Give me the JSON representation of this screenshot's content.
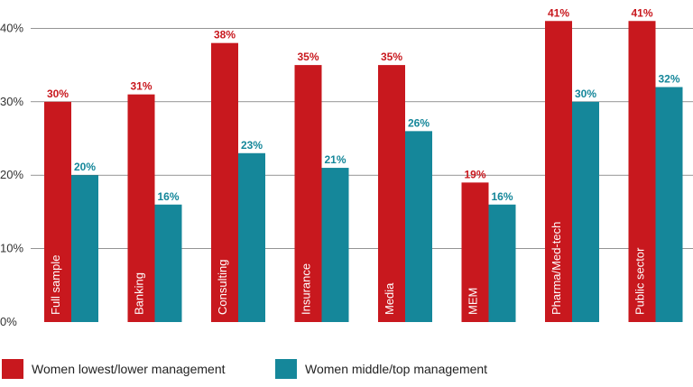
{
  "chart_data": {
    "type": "bar",
    "categories": [
      "Full sample",
      "Banking",
      "Consulting",
      "Insurance",
      "Media",
      "MEM",
      "Pharma/Med-tech",
      "Public sector"
    ],
    "series": [
      {
        "name": "Women lowest/lower management",
        "values": [
          30,
          31,
          38,
          35,
          35,
          19,
          41,
          41
        ],
        "labels": [
          "30%",
          "31%",
          "38%",
          "35%",
          "35%",
          "19%",
          "41%",
          "41%"
        ],
        "color": "#c8181e"
      },
      {
        "name": "Women middle/top management",
        "values": [
          20,
          16,
          23,
          21,
          26,
          16,
          30,
          32
        ],
        "labels": [
          "20%",
          "16%",
          "23%",
          "21%",
          "26%",
          "16%",
          "30%",
          "32%"
        ],
        "color": "#15879a"
      }
    ],
    "y_ticks": [
      "0%",
      "10%",
      "20%",
      "30%",
      "40%"
    ],
    "y_tick_values": [
      0,
      10,
      20,
      30,
      40
    ],
    "ylim": [
      0,
      43
    ],
    "title": "",
    "xlabel": "",
    "ylabel": "",
    "grid": true,
    "gridline_color": "#555555",
    "legend_position": "bottom-left"
  },
  "legend": {
    "items": [
      {
        "label": "Women lowest/lower management",
        "color": "#c8181e"
      },
      {
        "label": "Women middle/top management",
        "color": "#15879a"
      }
    ]
  }
}
